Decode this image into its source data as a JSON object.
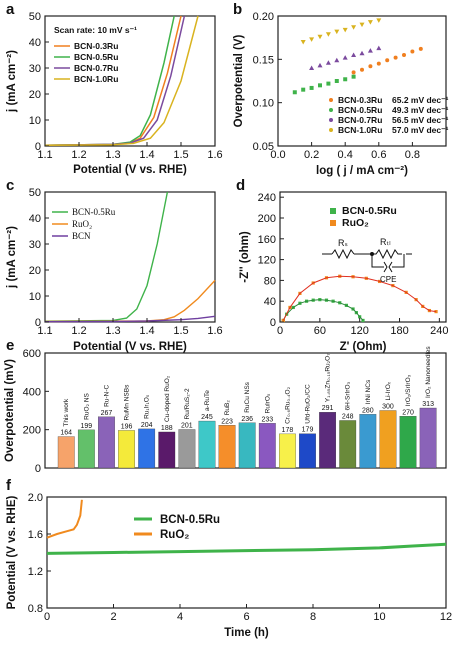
{
  "colors": {
    "BCN-0.3Ru": "#f07f1f",
    "BCN-0.5Ru": "#3fb34a",
    "BCN-0.7Ru": "#7b4a9e",
    "BCN-1.0Ru": "#d9b31f",
    "RuO2": "#f08a1e",
    "BCN": "#6f3fa0"
  },
  "chart_data": [
    {
      "panel": "a",
      "type": "line",
      "annotation": "Scan rate: 10 mV s⁻¹",
      "xlabel": "Potential (V vs. RHE)",
      "ylabel": "j (mA cm⁻²)",
      "xlim": [
        1.1,
        1.6
      ],
      "ylim": [
        0,
        50
      ],
      "xticks": [
        "1.1",
        "1.2",
        "1.3",
        "1.4",
        "1.5",
        "1.6"
      ],
      "yticks": [
        "0",
        "10",
        "20",
        "30",
        "40",
        "50"
      ],
      "series": [
        {
          "name": "BCN-0.3Ru",
          "x": [
            1.1,
            1.3,
            1.35,
            1.38,
            1.42,
            1.46,
            1.5
          ],
          "y": [
            0.3,
            0.6,
            1.2,
            3,
            11,
            28,
            50
          ]
        },
        {
          "name": "BCN-0.5Ru",
          "x": [
            1.1,
            1.3,
            1.35,
            1.38,
            1.41,
            1.45,
            1.48
          ],
          "y": [
            0.3,
            0.6,
            1.5,
            4,
            12,
            32,
            50
          ]
        },
        {
          "name": "BCN-0.7Ru",
          "x": [
            1.1,
            1.3,
            1.35,
            1.39,
            1.43,
            1.47,
            1.51
          ],
          "y": [
            0.3,
            0.6,
            1.1,
            3,
            10,
            27,
            50
          ]
        },
        {
          "name": "BCN-1.0Ru",
          "x": [
            1.1,
            1.3,
            1.36,
            1.41,
            1.45,
            1.5,
            1.55
          ],
          "y": [
            0.3,
            0.5,
            1,
            3,
            9,
            25,
            50
          ]
        }
      ]
    },
    {
      "panel": "b",
      "type": "scatter",
      "xlabel": "log ( j / mA cm⁻²)",
      "ylabel": "Overpotential (V)",
      "xlim": [
        0.0,
        1.0
      ],
      "ylim": [
        0.05,
        0.2
      ],
      "xticks": [
        "0.0",
        "0.2",
        "0.4",
        "0.6",
        "0.8"
      ],
      "yticks": [
        "0.05",
        "0.10",
        "0.15",
        "0.20"
      ],
      "series": [
        {
          "name": "BCN-0.3Ru",
          "tafel": "65.2 mV dec⁻¹",
          "x": [
            0.45,
            0.5,
            0.55,
            0.6,
            0.65,
            0.7,
            0.75,
            0.8,
            0.85
          ],
          "y": [
            0.135,
            0.138,
            0.142,
            0.145,
            0.149,
            0.152,
            0.155,
            0.159,
            0.162
          ]
        },
        {
          "name": "BCN-0.5Ru",
          "tafel": "49.3 mV dec⁻¹",
          "x": [
            0.1,
            0.15,
            0.2,
            0.25,
            0.3,
            0.35,
            0.4,
            0.45
          ],
          "y": [
            0.112,
            0.115,
            0.117,
            0.12,
            0.122,
            0.125,
            0.127,
            0.13
          ]
        },
        {
          "name": "BCN-0.7Ru",
          "tafel": "56.5 mV dec⁻¹",
          "x": [
            0.2,
            0.25,
            0.3,
            0.35,
            0.4,
            0.45,
            0.5,
            0.55,
            0.6
          ],
          "y": [
            0.14,
            0.143,
            0.146,
            0.149,
            0.152,
            0.155,
            0.157,
            0.16,
            0.163
          ]
        },
        {
          "name": "BCN-1.0Ru",
          "tafel": "57.0 mV dec⁻¹",
          "x": [
            0.15,
            0.2,
            0.25,
            0.3,
            0.35,
            0.4,
            0.45,
            0.5,
            0.55,
            0.6
          ],
          "y": [
            0.17,
            0.173,
            0.176,
            0.179,
            0.182,
            0.184,
            0.187,
            0.19,
            0.193,
            0.195
          ]
        }
      ]
    },
    {
      "panel": "c",
      "type": "line",
      "xlabel": "Potential (V vs. RHE)",
      "ylabel": "j (mA cm⁻²)",
      "xlim": [
        1.1,
        1.6
      ],
      "ylim": [
        0,
        50
      ],
      "xticks": [
        "1.1",
        "1.2",
        "1.3",
        "1.4",
        "1.5",
        "1.6"
      ],
      "yticks": [
        "0",
        "10",
        "20",
        "30",
        "40",
        "50"
      ],
      "series": [
        {
          "name": "BCN-0.5Ru",
          "x": [
            1.1,
            1.3,
            1.34,
            1.37,
            1.4,
            1.43,
            1.46
          ],
          "y": [
            0.3,
            0.6,
            1.5,
            5,
            14,
            30,
            50
          ]
        },
        {
          "name": "RuO₂",
          "x": [
            1.1,
            1.4,
            1.45,
            1.48,
            1.51,
            1.55,
            1.6
          ],
          "y": [
            0.2,
            0.4,
            0.9,
            2,
            4.5,
            9,
            16
          ]
        },
        {
          "name": "BCN",
          "x": [
            1.1,
            1.3,
            1.4,
            1.5,
            1.55,
            1.6
          ],
          "y": [
            0.1,
            0.2,
            0.4,
            0.9,
            1.4,
            2.2
          ]
        }
      ]
    },
    {
      "panel": "d",
      "type": "scatter",
      "xlabel": "Z' (Ohm)",
      "ylabel": "-Z'' (ohm)",
      "xlim": [
        0,
        250
      ],
      "ylim": [
        0,
        250
      ],
      "xticks": [
        "0",
        "60",
        "120",
        "180",
        "240"
      ],
      "yticks": [
        "0",
        "40",
        "80",
        "120",
        "160",
        "200",
        "240"
      ],
      "circuit_labels": [
        "Rₛ",
        "Rₜₗ",
        "CPE"
      ],
      "series": [
        {
          "name": "BCN-0.5Ru",
          "x": [
            5,
            10,
            20,
            30,
            40,
            50,
            60,
            70,
            80,
            90,
            100,
            110,
            115,
            120,
            125
          ],
          "y": [
            3,
            15,
            28,
            36,
            40,
            42,
            43,
            42,
            40,
            37,
            32,
            25,
            18,
            10,
            3
          ]
        },
        {
          "name": "RuO₂",
          "x": [
            5,
            15,
            30,
            50,
            70,
            90,
            110,
            130,
            150,
            170,
            190,
            205,
            215,
            225,
            235
          ],
          "y": [
            3,
            28,
            55,
            75,
            85,
            88,
            87,
            84,
            78,
            70,
            57,
            43,
            30,
            22,
            20
          ]
        }
      ]
    },
    {
      "panel": "e",
      "type": "bar",
      "ylabel": "Overpotential (mV)",
      "ylim": [
        0,
        600
      ],
      "yticks": [
        "0",
        "200",
        "400",
        "600"
      ],
      "categories": [
        "This work",
        "RuO₂ NS",
        "Ru-N-C",
        "RuMn NSBs",
        "Ru₁Ir₁Oₓ",
        "Cu-doped RuO₂",
        "Ru/RuS₂-2",
        "a-RuTe",
        "RuB₂",
        "RuCu NSs",
        "RuIrOₓ",
        "Cr₀.₆Ru₀.₄O₂",
        "Ufd-RuO₂/CC",
        "Y₁.₈₅Zn₀.₁₅Ru₂O₇",
        "6H-SrIrO₃",
        "IrNi NCs",
        "Li-IrOₓ",
        "IrO₂/SrIrO₃",
        "IrO₂ Nanoneedles"
      ],
      "values": [
        164,
        199,
        267,
        196,
        204,
        188,
        201,
        245,
        223,
        236,
        233,
        178,
        179,
        291,
        248,
        280,
        300,
        270,
        313
      ],
      "bar_colors": [
        "#f6a36a",
        "#63c06a",
        "#8a63b8",
        "#f4ea3a",
        "#2f73e6",
        "#5a1a6a",
        "#9a9a9a",
        "#3ec8c8",
        "#f58e2a",
        "#38b8c0",
        "#8a58c0",
        "#f7f04a",
        "#1e49c8",
        "#5a2a7a",
        "#6a8a3a",
        "#3a9ad0",
        "#f0a020",
        "#2fa84a",
        "#8a63b8"
      ],
      "label_colors": [
        "#e02020",
        "#111",
        "#111",
        "#111",
        "#111",
        "#111",
        "#111",
        "#111",
        "#111",
        "#111",
        "#111",
        "#111",
        "#111",
        "#111",
        "#111",
        "#111",
        "#111",
        "#111",
        "#e07010"
      ]
    },
    {
      "panel": "f",
      "type": "line",
      "xlabel": "Time (h)",
      "ylabel": "Potential (V vs. RHE)",
      "xlim": [
        0,
        12
      ],
      "ylim": [
        0.8,
        2.0
      ],
      "xticks": [
        "0",
        "2",
        "4",
        "6",
        "8",
        "10",
        "12"
      ],
      "yticks": [
        "0.8",
        "1.2",
        "1.6",
        "2.0"
      ],
      "series": [
        {
          "name": "BCN-0.5Ru",
          "x": [
            0,
            2,
            4,
            6,
            8,
            10,
            11,
            12
          ],
          "y": [
            1.39,
            1.4,
            1.41,
            1.42,
            1.43,
            1.45,
            1.47,
            1.49
          ]
        },
        {
          "name": "RuO₂",
          "x": [
            0,
            0.3,
            0.6,
            0.8,
            0.9,
            1.0,
            1.05
          ],
          "y": [
            1.56,
            1.6,
            1.63,
            1.65,
            1.7,
            1.8,
            1.97
          ]
        }
      ]
    }
  ],
  "panels": {
    "a": {
      "letter": "a"
    },
    "b": {
      "letter": "b"
    },
    "c": {
      "letter": "c"
    },
    "d": {
      "letter": "d"
    },
    "e": {
      "letter": "e"
    },
    "f": {
      "letter": "f"
    }
  }
}
